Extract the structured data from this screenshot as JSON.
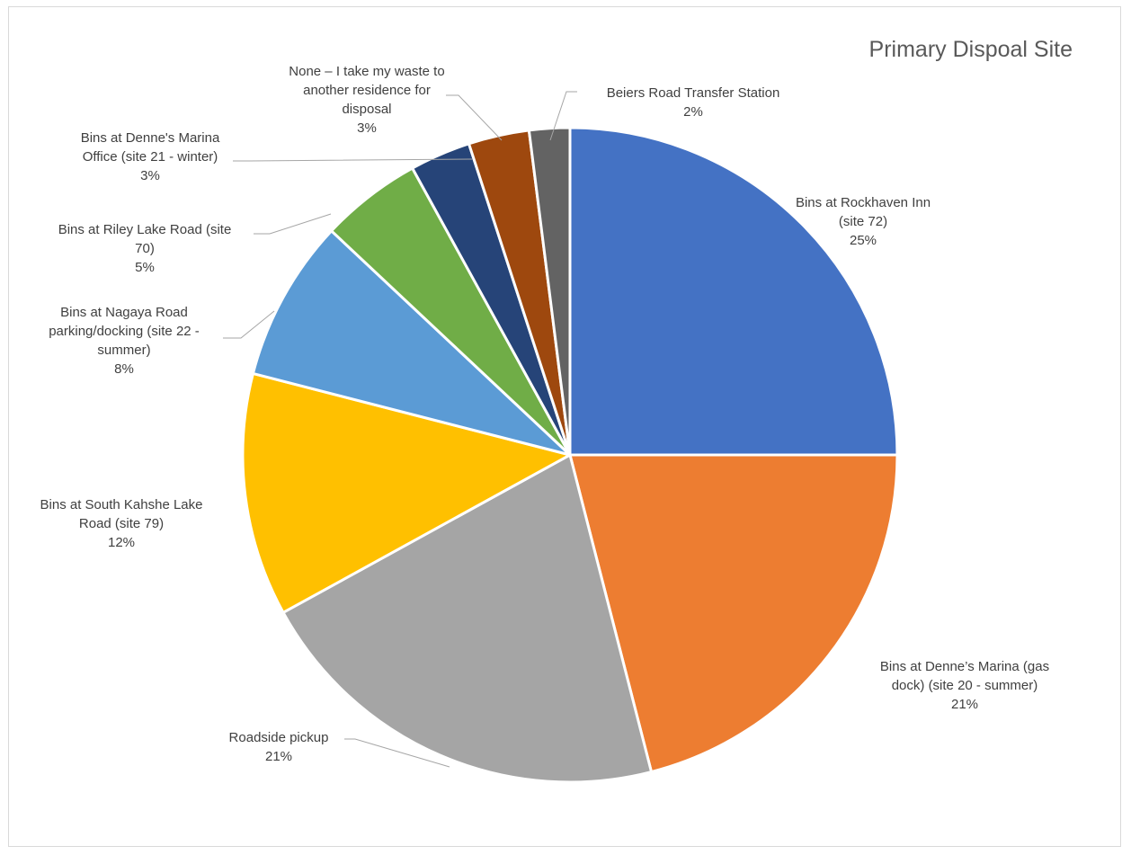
{
  "chart_data": {
    "type": "pie",
    "title": "Primary Dispoal Site",
    "legend": "none",
    "start_angle_deg": 0,
    "direction": "clockwise",
    "slices": [
      {
        "label_lines": [
          "Bins at Rockhaven Inn",
          "(site 72)"
        ],
        "value": 25,
        "pct_label": "25%",
        "color": "#4472c4"
      },
      {
        "label_lines": [
          "Bins at Denne’s Marina (gas",
          "dock) (site 20 - summer)"
        ],
        "value": 21,
        "pct_label": "21%",
        "color": "#ed7d31"
      },
      {
        "label_lines": [
          "Roadside pickup"
        ],
        "value": 21,
        "pct_label": "21%",
        "color": "#a5a5a5"
      },
      {
        "label_lines": [
          "Bins at South Kahshe Lake",
          "Road (site 79)"
        ],
        "value": 12,
        "pct_label": "12%",
        "color": "#ffc000"
      },
      {
        "label_lines": [
          "Bins at Nagaya Road",
          "parking/docking (site 22 -",
          "summer)"
        ],
        "value": 8,
        "pct_label": "8%",
        "color": "#5b9bd5"
      },
      {
        "label_lines": [
          "Bins at Riley Lake Road (site",
          "70)"
        ],
        "value": 5,
        "pct_label": "5%",
        "color": "#70ad47"
      },
      {
        "label_lines": [
          "Bins at Denne's Marina",
          "Office (site 21 - winter)"
        ],
        "value": 3,
        "pct_label": "3%",
        "color": "#264478"
      },
      {
        "label_lines": [
          "None – I take my waste to",
          "another residence for",
          "disposal"
        ],
        "value": 3,
        "pct_label": "3%",
        "color": "#9e480e"
      },
      {
        "label_lines": [
          "Beiers Road Transfer Station"
        ],
        "value": 2,
        "pct_label": "2%",
        "color": "#636363"
      }
    ]
  }
}
